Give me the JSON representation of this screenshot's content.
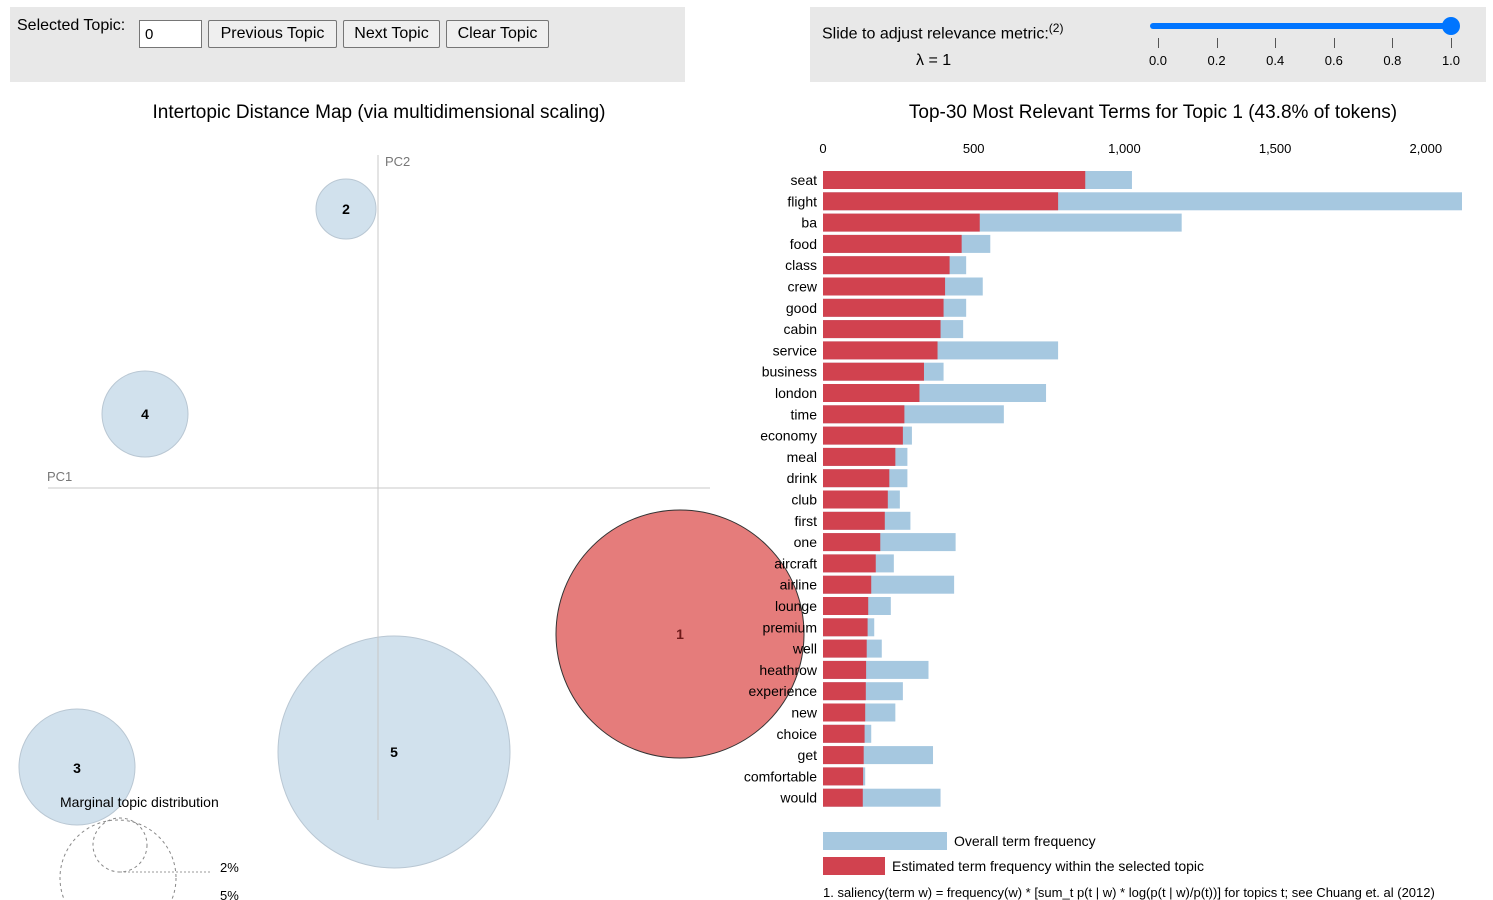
{
  "controls": {
    "selected_topic_label": "Selected Topic:",
    "selected_topic_value": "0",
    "prev_label": "Previous Topic",
    "next_label": "Next Topic",
    "clear_label": "Clear Topic",
    "slider_label": "Slide to adjust relevance metric:",
    "slider_footnote_ref": "(2)",
    "lambda_text": "λ = 1",
    "slider_value": 1.0,
    "slider_ticks": [
      "0.0",
      "0.2",
      "0.4",
      "0.6",
      "0.8",
      "1.0"
    ]
  },
  "left": {
    "title": "Intertopic Distance Map (via multidimensional scaling)",
    "pc1": "PC1",
    "pc2": "PC2",
    "marginal_label": "Marginal topic distribution",
    "marginal_ticks": [
      "2%",
      "5%"
    ],
    "topics": [
      {
        "id": "1",
        "selected": true
      },
      {
        "id": "2",
        "selected": false
      },
      {
        "id": "3",
        "selected": false
      },
      {
        "id": "4",
        "selected": false
      },
      {
        "id": "5",
        "selected": false
      }
    ]
  },
  "colors": {
    "overall": "#a6c8e0",
    "topic": "#d1424f",
    "topic_circle": "#e57c7b",
    "circle": "#d1e1ed"
  },
  "chart_data": {
    "type": "bar",
    "title": "Top-30 Most Relevant Terms for Topic 1 (43.8% of tokens)",
    "xlim": [
      0,
      2120
    ],
    "x_ticks": [
      "0",
      "500",
      "1,000",
      "1,500",
      "2,000"
    ],
    "x_tick_values": [
      0,
      500,
      1000,
      1500,
      2000
    ],
    "categories": [
      "seat",
      "flight",
      "ba",
      "food",
      "class",
      "crew",
      "good",
      "cabin",
      "service",
      "business",
      "london",
      "time",
      "economy",
      "meal",
      "drink",
      "club",
      "first",
      "one",
      "aircraft",
      "airline",
      "lounge",
      "premium",
      "well",
      "heathrow",
      "experience",
      "new",
      "choice",
      "get",
      "comfortable",
      "would"
    ],
    "series": [
      {
        "name": "Overall term frequency",
        "values": [
          1025,
          2120,
          1190,
          555,
          475,
          530,
          475,
          465,
          780,
          400,
          740,
          600,
          295,
          280,
          280,
          255,
          290,
          440,
          235,
          435,
          225,
          170,
          195,
          350,
          265,
          240,
          160,
          365,
          140,
          390
        ]
      },
      {
        "name": "Estimated term frequency within the selected topic",
        "values": [
          870,
          780,
          520,
          460,
          420,
          405,
          400,
          390,
          380,
          335,
          320,
          270,
          265,
          240,
          220,
          215,
          205,
          190,
          175,
          160,
          150,
          148,
          145,
          143,
          142,
          140,
          138,
          135,
          133,
          132
        ]
      }
    ],
    "legend_labels": [
      "Overall term frequency",
      "Estimated term frequency within the selected topic"
    ],
    "footnote": "1. saliency(term w) = frequency(w) * [sum_t p(t | w) * log(p(t | w)/p(t))] for topics t; see Chuang et. al (2012)"
  }
}
